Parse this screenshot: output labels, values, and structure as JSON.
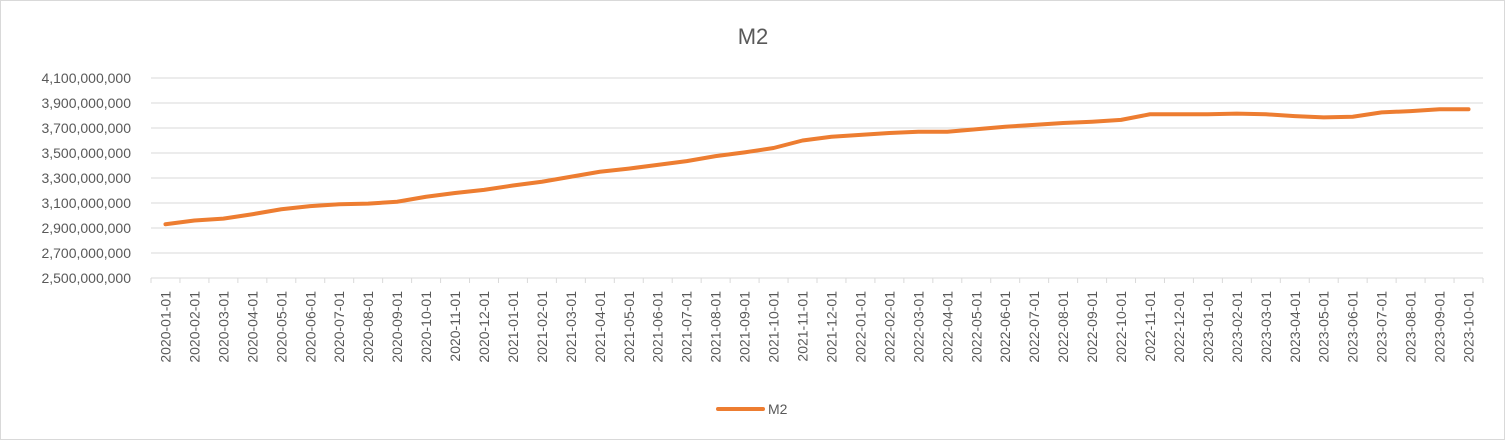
{
  "chart_data": {
    "type": "line",
    "title": "M2",
    "xlabel": "",
    "ylabel": "",
    "ylim": [
      2500000000,
      4100000000
    ],
    "yticks": [
      2500000000,
      2700000000,
      2900000000,
      3100000000,
      3300000000,
      3500000000,
      3700000000,
      3900000000,
      4100000000
    ],
    "ytick_labels": [
      "2,500,000,000",
      "2,700,000,000",
      "2,900,000,000",
      "3,100,000,000",
      "3,300,000,000",
      "3,500,000,000",
      "3,700,000,000",
      "3,900,000,000",
      "4,100,000,000"
    ],
    "grid": true,
    "legend": "bottom",
    "categories": [
      "2020-01-01",
      "2020-02-01",
      "2020-03-01",
      "2020-04-01",
      "2020-05-01",
      "2020-06-01",
      "2020-07-01",
      "2020-08-01",
      "2020-09-01",
      "2020-10-01",
      "2020-11-01",
      "2020-12-01",
      "2021-01-01",
      "2021-02-01",
      "2021-03-01",
      "2021-04-01",
      "2021-05-01",
      "2021-06-01",
      "2021-07-01",
      "2021-08-01",
      "2021-09-01",
      "2021-10-01",
      "2021-11-01",
      "2021-12-01",
      "2022-01-01",
      "2022-02-01",
      "2022-03-01",
      "2022-04-01",
      "2022-05-01",
      "2022-06-01",
      "2022-07-01",
      "2022-08-01",
      "2022-09-01",
      "2022-10-01",
      "2022-11-01",
      "2022-12-01",
      "2023-01-01",
      "2023-02-01",
      "2023-03-01",
      "2023-04-01",
      "2023-05-01",
      "2023-06-01",
      "2023-07-01",
      "2023-08-01",
      "2023-09-01",
      "2023-10-01"
    ],
    "series": [
      {
        "name": "M2",
        "color": "#ed7d31",
        "values": [
          2930000000,
          2960000000,
          2975000000,
          3010000000,
          3050000000,
          3075000000,
          3090000000,
          3095000000,
          3110000000,
          3150000000,
          3180000000,
          3205000000,
          3240000000,
          3270000000,
          3310000000,
          3350000000,
          3375000000,
          3405000000,
          3435000000,
          3475000000,
          3505000000,
          3540000000,
          3600000000,
          3630000000,
          3645000000,
          3660000000,
          3670000000,
          3670000000,
          3690000000,
          3710000000,
          3725000000,
          3740000000,
          3750000000,
          3765000000,
          3810000000,
          3810000000,
          3810000000,
          3815000000,
          3810000000,
          3795000000,
          3785000000,
          3790000000,
          3825000000,
          3835000000,
          3850000000,
          3850000000
        ]
      }
    ]
  }
}
